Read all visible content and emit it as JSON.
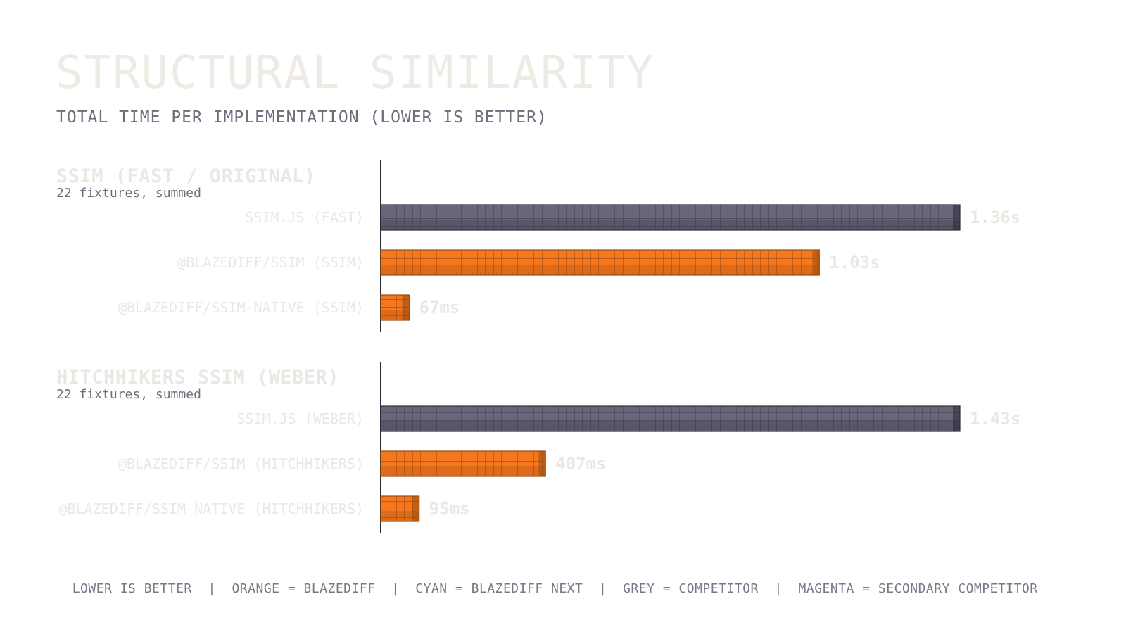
{
  "header": {
    "title": "STRUCTURAL SIMILARITY",
    "subtitle": "TOTAL TIME PER IMPLEMENTATION (LOWER IS BETTER)"
  },
  "colors": {
    "blazediff": "#f5781f",
    "competitor": "#68667a",
    "axis": "#2b2a35",
    "faint_text": "#ebe8e4",
    "muted_text": "#6f6c7c"
  },
  "chart_data": [
    {
      "type": "bar",
      "orientation": "horizontal",
      "title": "SSIM (FAST / ORIGINAL)",
      "subtitle": "22 fixtures, summed",
      "unit": "s",
      "xlim": [
        0,
        1.36
      ],
      "categories": [
        "SSIM.JS (FAST)",
        "@BLAZEDIFF/SSIM (SSIM)",
        "@BLAZEDIFF/SSIM-NATIVE (SSIM)"
      ],
      "values": [
        1.36,
        1.03,
        0.067
      ],
      "value_labels": [
        "1.36s",
        "1.03s",
        "67ms"
      ],
      "groups": [
        "competitor",
        "blazediff",
        "blazediff"
      ]
    },
    {
      "type": "bar",
      "orientation": "horizontal",
      "title": "HITCHHIKERS SSIM (WEBER)",
      "subtitle": "22 fixtures, summed",
      "unit": "s",
      "xlim": [
        0,
        1.43
      ],
      "categories": [
        "SSIM.JS (WEBER)",
        "@BLAZEDIFF/SSIM (HITCHHIKERS)",
        "@BLAZEDIFF/SSIM-NATIVE (HITCHHIKERS)"
      ],
      "values": [
        1.43,
        0.407,
        0.095
      ],
      "value_labels": [
        "1.43s",
        "407ms",
        "95ms"
      ],
      "groups": [
        "competitor",
        "blazediff",
        "blazediff"
      ]
    }
  ],
  "legend": {
    "items": [
      "LOWER IS BETTER",
      "ORANGE = BLAZEDIFF",
      "CYAN = BLAZEDIFF NEXT",
      "GREY = COMPETITOR",
      "MAGENTA = SECONDARY COMPETITOR"
    ],
    "separator": "|"
  }
}
